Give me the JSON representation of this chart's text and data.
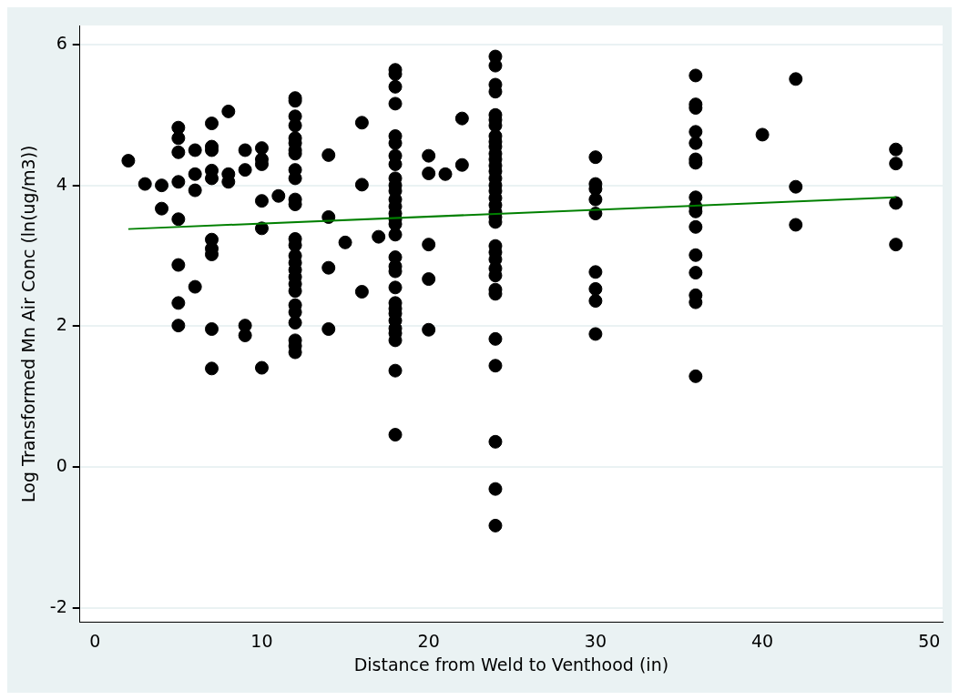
{
  "chart_data": {
    "type": "scatter",
    "xlabel": "Distance from Weld to Venthood (in)",
    "ylabel": "Log Transformed Mn Air Conc (ln(ug/m3))",
    "xlim": [
      -0.9,
      50.8
    ],
    "xticks": [
      0,
      10,
      20,
      30,
      40,
      50
    ],
    "ylim": [
      -2.2,
      6.27
    ],
    "yticks": [
      -2,
      0,
      2,
      4,
      6
    ],
    "grid": "y",
    "legend": false,
    "series": [
      {
        "type": "scatter",
        "marker": "circle",
        "color": "#000000",
        "x": [
          2,
          3,
          4,
          4,
          5,
          5,
          5,
          5,
          5,
          5,
          5,
          5,
          6,
          6,
          6,
          6,
          7,
          7,
          7,
          7,
          7,
          7,
          7,
          7,
          7,
          7,
          8,
          8,
          8,
          9,
          9,
          9,
          9,
          10,
          10,
          10,
          10,
          10,
          10,
          11,
          12,
          12,
          12,
          12,
          12,
          12,
          12,
          12,
          12,
          12,
          12,
          12,
          12,
          12,
          12,
          12,
          12,
          12,
          12,
          12,
          12,
          12,
          12,
          12,
          12,
          12,
          14,
          14,
          14,
          14,
          15,
          16,
          16,
          16,
          17,
          18,
          18,
          18,
          18,
          18,
          18,
          18,
          18,
          18,
          18,
          18,
          18,
          18,
          18,
          18,
          18,
          18,
          18,
          18,
          18,
          18,
          18,
          18,
          18,
          18,
          18,
          18,
          18,
          18,
          18,
          20,
          20,
          20,
          20,
          20,
          21,
          22,
          22,
          24,
          24,
          24,
          24,
          24,
          24,
          24,
          24,
          24,
          24,
          24,
          24,
          24,
          24,
          24,
          24,
          24,
          24,
          24,
          24,
          24,
          24,
          24,
          24,
          24,
          24,
          24,
          24,
          24,
          24,
          24,
          24,
          24,
          24,
          30,
          30,
          30,
          30,
          30,
          30,
          30,
          30,
          30,
          36,
          36,
          36,
          36,
          36,
          36,
          36,
          36,
          36,
          36,
          36,
          36,
          36,
          36,
          36,
          36,
          40,
          42,
          42,
          42,
          48,
          48,
          48,
          48
        ],
        "values": [
          4.35,
          4.02,
          4.0,
          3.67,
          4.82,
          4.67,
          4.47,
          4.05,
          3.52,
          2.87,
          2.33,
          2.01,
          4.5,
          4.16,
          3.93,
          2.56,
          4.88,
          4.55,
          4.5,
          4.21,
          4.1,
          3.23,
          3.1,
          3.02,
          1.96,
          1.4,
          5.05,
          4.16,
          4.05,
          4.5,
          4.22,
          2.01,
          1.87,
          4.53,
          4.37,
          4.3,
          3.78,
          3.39,
          1.41,
          3.85,
          5.24,
          5.2,
          4.98,
          4.85,
          4.67,
          4.6,
          4.5,
          4.45,
          4.22,
          4.1,
          3.8,
          3.73,
          3.24,
          3.15,
          3.0,
          2.9,
          2.8,
          2.7,
          2.6,
          2.5,
          2.3,
          2.2,
          2.05,
          1.8,
          1.72,
          1.63,
          4.43,
          3.55,
          2.83,
          1.96,
          3.19,
          4.89,
          4.01,
          2.49,
          3.27,
          5.64,
          5.58,
          5.4,
          5.16,
          4.7,
          4.6,
          4.42,
          4.3,
          4.1,
          4.0,
          3.92,
          3.8,
          3.7,
          3.6,
          3.52,
          3.45,
          3.3,
          2.98,
          2.85,
          2.78,
          2.55,
          2.33,
          2.25,
          2.18,
          2.08,
          1.97,
          1.9,
          1.8,
          1.37,
          0.46,
          4.42,
          4.17,
          3.16,
          2.67,
          1.95,
          4.16,
          4.95,
          4.29,
          5.83,
          5.7,
          5.43,
          5.33,
          5.0,
          4.93,
          4.85,
          4.7,
          4.62,
          4.55,
          4.45,
          4.37,
          4.28,
          4.2,
          4.1,
          4.0,
          3.92,
          3.82,
          3.72,
          3.62,
          3.55,
          3.48,
          3.14,
          3.05,
          2.95,
          2.82,
          2.72,
          2.52,
          2.46,
          1.82,
          1.44,
          0.36,
          -0.31,
          -0.83,
          4.4,
          4.02,
          3.95,
          3.8,
          3.6,
          2.77,
          2.53,
          2.36,
          1.89,
          5.56,
          5.15,
          5.1,
          4.76,
          4.6,
          4.37,
          4.32,
          3.83,
          3.7,
          3.63,
          3.41,
          3.01,
          2.76,
          2.44,
          2.34,
          1.29,
          4.72,
          5.51,
          3.98,
          3.44,
          4.51,
          4.31,
          3.75,
          3.16
        ]
      },
      {
        "type": "line",
        "marker": "none",
        "color": "#008000",
        "x": [
          2,
          48
        ],
        "values": [
          3.38,
          3.83
        ]
      }
    ]
  }
}
